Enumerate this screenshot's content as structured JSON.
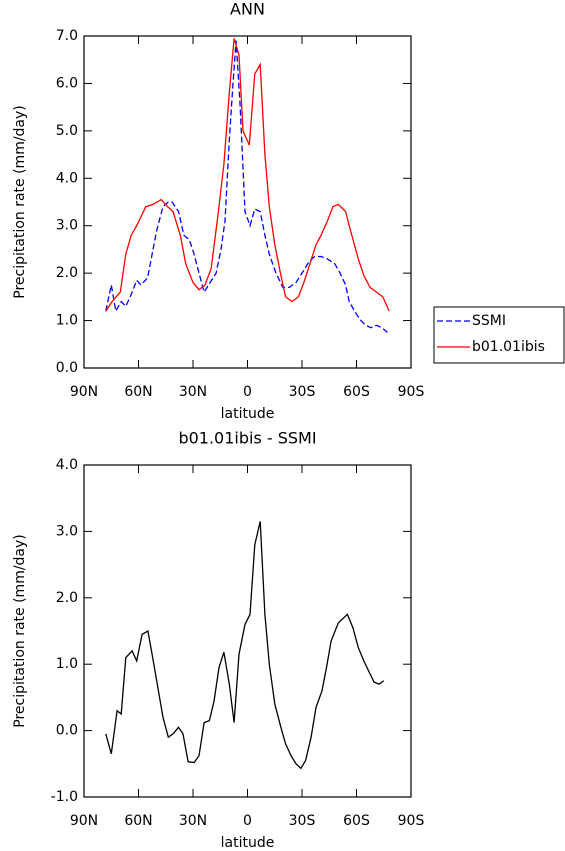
{
  "chart_data": [
    {
      "type": "line",
      "title": "ANN",
      "xlabel": "latitude",
      "ylabel": "Precipitation rate (mm/day)",
      "xlim": [
        90,
        -90
      ],
      "xticks": [
        {
          "value": 90,
          "label": "90N"
        },
        {
          "value": 60,
          "label": "60N"
        },
        {
          "value": 30,
          "label": "30N"
        },
        0,
        {
          "value": -30,
          "label": "30S"
        },
        {
          "value": -60,
          "label": "60S"
        },
        {
          "value": -90,
          "label": "90S"
        }
      ],
      "ylim": [
        0,
        7
      ],
      "yticks": [
        {
          "value": 0,
          "label": "0.0"
        },
        {
          "value": 1,
          "label": "1.0"
        },
        {
          "value": 2,
          "label": "2.0"
        },
        {
          "value": 3,
          "label": "3.0"
        },
        {
          "value": 4,
          "label": "4.0"
        },
        {
          "value": 5,
          "label": "5.0"
        },
        {
          "value": 6,
          "label": "6.0"
        },
        {
          "value": 7,
          "label": "7.0"
        }
      ],
      "legend": "outside-right",
      "series": [
        {
          "name": "SSMI",
          "color": "#0000ff",
          "dashed": true,
          "x": [
            78,
            75,
            72.5,
            69.5,
            67,
            64,
            61,
            58.6,
            55,
            52.5,
            50,
            46.5,
            43.6,
            41.5,
            38,
            35,
            32,
            29.4,
            26.7,
            23.9,
            20.6,
            17.3,
            14.6,
            12.4,
            10,
            8,
            6.3,
            4,
            1.4,
            -1.4,
            -4,
            -7,
            -9.6,
            -12,
            -15.7,
            -19.5,
            -23,
            -26.7,
            -30,
            -34,
            -37,
            -40.5,
            -44,
            -48,
            -51,
            -54,
            -56,
            -59.7,
            -62.5,
            -65,
            -68,
            -71,
            -74,
            -77
          ],
          "values": [
            1.2,
            1.75,
            1.2,
            1.4,
            1.3,
            1.55,
            1.85,
            1.75,
            1.9,
            2.4,
            2.9,
            3.4,
            3.5,
            3.5,
            3.3,
            2.8,
            2.7,
            2.4,
            2.0,
            1.6,
            1.8,
            2.0,
            2.5,
            3.1,
            4.8,
            6.0,
            6.9,
            5.5,
            3.3,
            3.0,
            3.35,
            3.3,
            2.8,
            2.4,
            2.0,
            1.7,
            1.7,
            1.8,
            2.0,
            2.25,
            2.35,
            2.35,
            2.3,
            2.2,
            2.0,
            1.75,
            1.4,
            1.15,
            1.0,
            0.9,
            0.85,
            0.9,
            0.85,
            0.75
          ]
        },
        {
          "name": "b01.01ibis",
          "color": "#ff0000",
          "dashed": false,
          "x": [
            78,
            74.6,
            70,
            67,
            64,
            61,
            56,
            52,
            47.5,
            44,
            41,
            37,
            34,
            30,
            26.7,
            23.4,
            20,
            16,
            13,
            10,
            7.4,
            4.7,
            2.5,
            -1,
            -4,
            -7,
            -9.6,
            -12,
            -15,
            -18.4,
            -21,
            -24.5,
            -28,
            -31,
            -34.4,
            -37.7,
            -40.5,
            -44,
            -47,
            -50,
            -54,
            -56,
            -61,
            -64,
            -67.5,
            -71,
            -74.5,
            -78
          ],
          "values": [
            1.2,
            1.4,
            1.6,
            2.4,
            2.8,
            3.0,
            3.4,
            3.45,
            3.55,
            3.4,
            3.3,
            2.8,
            2.2,
            1.8,
            1.65,
            1.75,
            2.1,
            3.3,
            4.3,
            5.8,
            6.95,
            6.6,
            5.0,
            4.7,
            6.2,
            6.4,
            4.5,
            3.4,
            2.6,
            1.95,
            1.5,
            1.4,
            1.5,
            1.8,
            2.2,
            2.6,
            2.8,
            3.1,
            3.4,
            3.45,
            3.3,
            3.0,
            2.3,
            1.95,
            1.7,
            1.6,
            1.5,
            1.2
          ]
        }
      ]
    },
    {
      "type": "line",
      "title": "b01.01ibis - SSMI",
      "xlabel": "latitude",
      "ylabel": "Precipitation rate (mm/day)",
      "xlim": [
        90,
        -90
      ],
      "xticks": [
        {
          "value": 90,
          "label": "90N"
        },
        {
          "value": 60,
          "label": "60N"
        },
        {
          "value": 30,
          "label": "30N"
        },
        0,
        {
          "value": -30,
          "label": "30S"
        },
        {
          "value": -60,
          "label": "60S"
        },
        {
          "value": -90,
          "label": "90S"
        }
      ],
      "ylim": [
        -1,
        4
      ],
      "yticks": [
        {
          "value": -1,
          "label": "-1.0"
        },
        {
          "value": 0,
          "label": "0.0"
        },
        {
          "value": 1,
          "label": "1.0"
        },
        {
          "value": 2,
          "label": "2.0"
        },
        {
          "value": 3,
          "label": "3.0"
        },
        {
          "value": 4,
          "label": "4.0"
        }
      ],
      "series": [
        {
          "color": "#000000",
          "dashed": false,
          "x": [
            78,
            75,
            71.8,
            69.5,
            67,
            63.5,
            61,
            58,
            54.8,
            52.5,
            50,
            46.5,
            43.6,
            41,
            38,
            35.5,
            32.7,
            29.4,
            26.7,
            23.9,
            21,
            18.4,
            15.7,
            13,
            10,
            7.4,
            4.7,
            1.4,
            -1.4,
            -4,
            -7,
            -9.6,
            -12,
            -15,
            -18.4,
            -21,
            -24,
            -26.7,
            -29.4,
            -32,
            -35,
            -37.7,
            -41,
            -43.5,
            -46,
            -50,
            -53,
            -55,
            -58,
            -61,
            -64,
            -67,
            -69.7,
            -72.4,
            -75
          ],
          "values": [
            -0.05,
            -0.35,
            0.3,
            0.25,
            1.1,
            1.2,
            1.05,
            1.45,
            1.5,
            1.15,
            0.75,
            0.2,
            -0.1,
            -0.05,
            0.05,
            -0.05,
            -0.47,
            -0.48,
            -0.38,
            0.12,
            0.15,
            0.45,
            0.95,
            1.18,
            0.7,
            0.12,
            1.15,
            1.6,
            1.75,
            2.8,
            3.15,
            1.75,
            1.0,
            0.4,
            0.05,
            -0.2,
            -0.38,
            -0.5,
            -0.57,
            -0.45,
            -0.1,
            0.35,
            0.6,
            0.95,
            1.35,
            1.62,
            1.7,
            1.75,
            1.55,
            1.25,
            1.05,
            0.88,
            0.73,
            0.7,
            0.75
          ]
        }
      ]
    }
  ]
}
